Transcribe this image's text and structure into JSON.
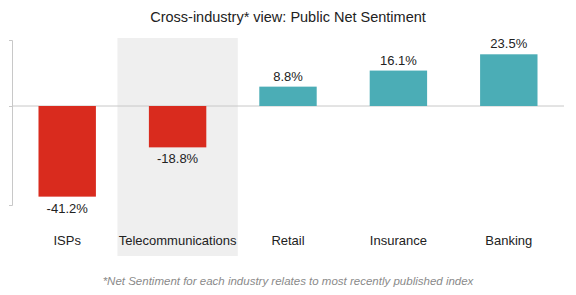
{
  "chart_data": {
    "type": "bar",
    "title": "Cross-industry* view: Public Net Sentiment",
    "categories": [
      "ISPs",
      "Telecommunications",
      "Retail",
      "Insurance",
      "Banking"
    ],
    "values": [
      -41.2,
      -18.8,
      8.8,
      16.1,
      23.5
    ],
    "value_labels": [
      "-41.2%",
      "-18.8%",
      "8.8%",
      "16.1%",
      "23.5%"
    ],
    "colors": [
      "#d92b1e",
      "#d92b1e",
      "#4badb6",
      "#4badb6",
      "#4badb6"
    ],
    "ylim": [
      -45,
      30
    ],
    "yticks": [
      0
    ],
    "grid": true,
    "data_labels": true,
    "tick_labels": "x",
    "annotations": [
      "*Net Sentiment for each industry relates to most recently published index"
    ]
  }
}
